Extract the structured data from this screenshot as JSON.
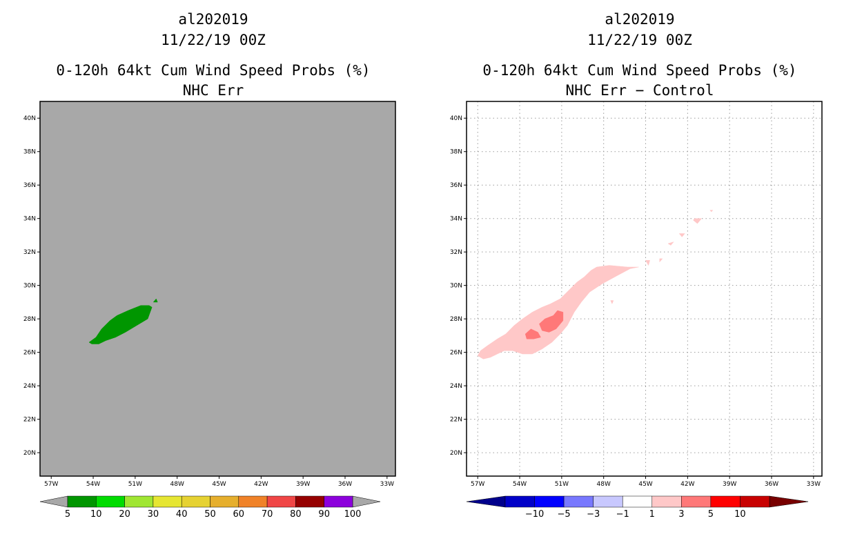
{
  "panels": [
    {
      "storm_id": "al202019",
      "datetime": "11/22/19 00Z",
      "product": "0-120h 64kt Cum Wind Speed Probs (%)",
      "subtitle": "NHC Err"
    },
    {
      "storm_id": "al202019",
      "datetime": "11/22/19 00Z",
      "product": "0-120h 64kt Cum Wind Speed Probs (%)",
      "subtitle": "NHC Err − Control"
    }
  ],
  "chart_data": [
    {
      "type": "filled-contour map",
      "title": "0-120h 64kt Cum Wind Speed Probs (%)",
      "subtitle": "NHC Err",
      "x_ticks": [
        "57W",
        "54W",
        "51W",
        "48W",
        "45W",
        "42W",
        "39W",
        "36W",
        "33W"
      ],
      "y_ticks": [
        "20N",
        "22N",
        "24N",
        "26N",
        "28N",
        "30N",
        "32N",
        "34N",
        "36N",
        "38N",
        "40N"
      ],
      "x_range_lon": [
        -57.8,
        -32.4
      ],
      "y_range_lat": [
        18.6,
        41.0
      ],
      "grid": false,
      "background": "#a8a8a8",
      "colorbar": {
        "levels": [
          "5",
          "10",
          "20",
          "30",
          "40",
          "50",
          "60",
          "70",
          "80",
          "90",
          "100"
        ],
        "colors": [
          "#009600",
          "#00dc00",
          "#a0e632",
          "#e6e632",
          "#e6d232",
          "#e6af2d",
          "#f08228",
          "#f04646",
          "#960000",
          "#8c00dc"
        ],
        "end_color": "#a8a8a8"
      },
      "regions": [
        {
          "level": "5-10",
          "color": "#009600",
          "lon_lat": [
            [
              -54.3,
              26.6
            ],
            [
              -53.8,
              26.9
            ],
            [
              -53.4,
              27.4
            ],
            [
              -52.8,
              27.9
            ],
            [
              -52.3,
              28.2
            ],
            [
              -51.5,
              28.5
            ],
            [
              -50.6,
              28.8
            ],
            [
              -50.0,
              28.8
            ],
            [
              -49.8,
              28.7
            ],
            [
              -50.1,
              28.0
            ],
            [
              -50.9,
              27.6
            ],
            [
              -51.7,
              27.2
            ],
            [
              -52.4,
              26.9
            ],
            [
              -53.1,
              26.7
            ],
            [
              -53.6,
              26.5
            ],
            [
              -54.1,
              26.5
            ]
          ]
        },
        {
          "level": "5-10",
          "color": "#009600",
          "lon_lat": [
            [
              -49.7,
              29.0
            ],
            [
              -49.5,
              29.2
            ],
            [
              -49.4,
              29.0
            ]
          ]
        }
      ]
    },
    {
      "type": "filled-contour map",
      "title": "0-120h 64kt Cum Wind Speed Probs (%)",
      "subtitle": "NHC Err − Control",
      "x_ticks": [
        "57W",
        "54W",
        "51W",
        "48W",
        "45W",
        "42W",
        "39W",
        "36W",
        "33W"
      ],
      "y_ticks": [
        "20N",
        "22N",
        "24N",
        "26N",
        "28N",
        "30N",
        "32N",
        "34N",
        "36N",
        "38N",
        "40N"
      ],
      "x_range_lon": [
        -57.8,
        -32.4
      ],
      "y_range_lat": [
        18.6,
        41.0
      ],
      "grid": true,
      "background": "#ffffff",
      "colorbar": {
        "levels": [
          "−10",
          "−5",
          "−3",
          "−1",
          "1",
          "3",
          "5",
          "10"
        ],
        "colors": [
          "#0000c8",
          "#0000ff",
          "#7878ff",
          "#c8c8ff",
          "#ffffff",
          "#ffc8c8",
          "#ff7878",
          "#ff0000",
          "#c80000"
        ],
        "left_end_color": "#00008c",
        "right_end_color": "#780000"
      },
      "regions": [
        {
          "level": "1-3",
          "color": "#ffc8c8",
          "lon_lat": [
            [
              -57.0,
              25.8
            ],
            [
              -56.6,
              25.6
            ],
            [
              -56.1,
              25.7
            ],
            [
              -55.6,
              25.9
            ],
            [
              -55.1,
              26.1
            ],
            [
              -54.5,
              26.1
            ],
            [
              -53.8,
              25.9
            ],
            [
              -53.1,
              25.9
            ],
            [
              -52.4,
              26.2
            ],
            [
              -51.7,
              26.6
            ],
            [
              -51.1,
              27.1
            ],
            [
              -50.6,
              27.6
            ],
            [
              -50.1,
              28.4
            ],
            [
              -49.6,
              29.0
            ],
            [
              -49.0,
              29.6
            ],
            [
              -48.1,
              30.1
            ],
            [
              -47.0,
              30.6
            ],
            [
              -46.1,
              31.0
            ],
            [
              -45.5,
              31.1
            ],
            [
              -46.3,
              31.1
            ],
            [
              -47.6,
              31.2
            ],
            [
              -48.5,
              31.1
            ],
            [
              -48.9,
              30.9
            ],
            [
              -49.4,
              30.5
            ],
            [
              -49.9,
              30.2
            ],
            [
              -50.5,
              29.7
            ],
            [
              -51.1,
              29.2
            ],
            [
              -51.8,
              28.9
            ],
            [
              -52.4,
              28.7
            ],
            [
              -53.1,
              28.4
            ],
            [
              -53.8,
              28.0
            ],
            [
              -54.4,
              27.6
            ],
            [
              -55.0,
              27.1
            ],
            [
              -55.6,
              26.8
            ],
            [
              -56.3,
              26.4
            ],
            [
              -56.8,
              26.1
            ]
          ]
        },
        {
          "level": "1-3",
          "color": "#ffc8c8",
          "lon_lat": [
            [
              -45.0,
              31.5
            ],
            [
              -44.7,
              31.5
            ],
            [
              -44.8,
              31.2
            ]
          ]
        },
        {
          "level": "1-3",
          "color": "#ffc8c8",
          "lon_lat": [
            [
              -44.0,
              31.6
            ],
            [
              -43.8,
              31.6
            ],
            [
              -44.0,
              31.4
            ]
          ]
        },
        {
          "level": "1-3",
          "color": "#ffc8c8",
          "lon_lat": [
            [
              -43.4,
              32.5
            ],
            [
              -43.0,
              32.6
            ],
            [
              -43.2,
              32.4
            ]
          ]
        },
        {
          "level": "1-3",
          "color": "#ffc8c8",
          "lon_lat": [
            [
              -42.6,
              33.1
            ],
            [
              -42.2,
              33.1
            ],
            [
              -42.4,
              32.9
            ]
          ]
        },
        {
          "level": "1-3",
          "color": "#ffc8c8",
          "lon_lat": [
            [
              -41.5,
              34.0
            ],
            [
              -41.0,
              34.0
            ],
            [
              -41.3,
              33.7
            ],
            [
              -41.6,
              33.9
            ]
          ]
        },
        {
          "level": "1-3",
          "color": "#ffc8c8",
          "lon_lat": [
            [
              -40.4,
              34.5
            ],
            [
              -40.2,
              34.5
            ],
            [
              -40.3,
              34.4
            ]
          ]
        },
        {
          "level": "1-3",
          "color": "#ffc8c8",
          "lon_lat": [
            [
              -47.5,
              29.1
            ],
            [
              -47.3,
              29.1
            ],
            [
              -47.4,
              28.9
            ]
          ]
        },
        {
          "level": "3-5",
          "color": "#ff7878",
          "lon_lat": [
            [
              -52.6,
              27.7
            ],
            [
              -52.2,
              28.0
            ],
            [
              -51.6,
              28.2
            ],
            [
              -51.3,
              28.5
            ],
            [
              -50.9,
              28.4
            ],
            [
              -50.9,
              27.9
            ],
            [
              -51.4,
              27.4
            ],
            [
              -51.9,
              27.2
            ],
            [
              -52.4,
              27.3
            ]
          ]
        },
        {
          "level": "3-5",
          "color": "#ff7878",
          "lon_lat": [
            [
              -53.6,
              27.1
            ],
            [
              -53.2,
              27.4
            ],
            [
              -52.7,
              27.2
            ],
            [
              -52.5,
              26.9
            ],
            [
              -53.0,
              26.8
            ],
            [
              -53.5,
              26.8
            ]
          ]
        }
      ]
    }
  ]
}
